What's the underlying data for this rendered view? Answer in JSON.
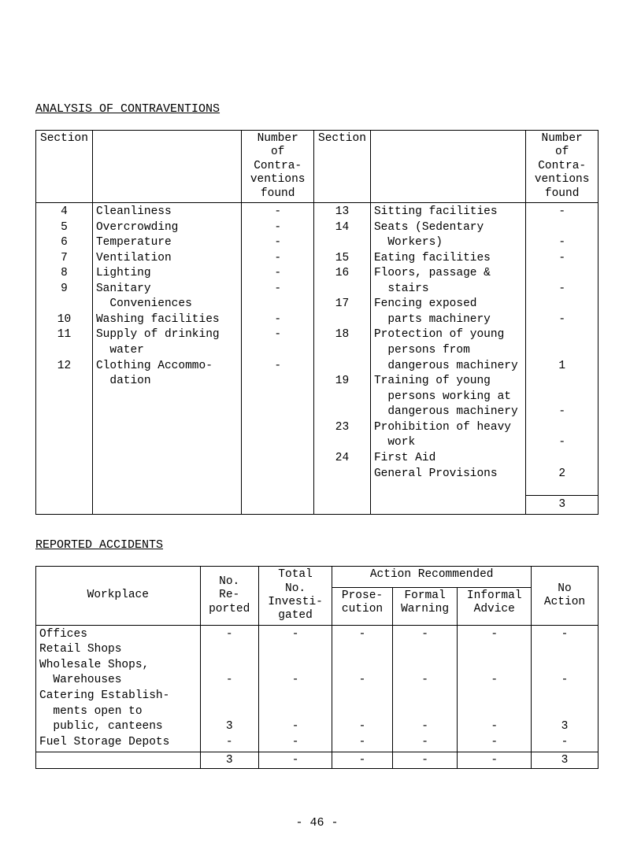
{
  "heading1": "ANALYSIS OF CONTRAVENTIONS",
  "heading2": "REPORTED ACCIDENTS",
  "footer": "- 46 -",
  "table1": {
    "hdr": {
      "section_l": "Section",
      "blank": "",
      "contra": "Number\nof\nContra-\nventions\nfound",
      "section_r": "Section",
      "blank2": "",
      "contra2": "Number\nof\nContra-\nventions\nfound"
    },
    "left_nums": [
      "4",
      "5",
      "6",
      "7",
      "8",
      "9",
      "",
      "10",
      "11",
      "",
      "12",
      ""
    ],
    "left_desc": [
      "Cleanliness",
      "Overcrowding",
      "Temperature",
      "Ventilation",
      "Lighting",
      "Sanitary",
      "  Conveniences",
      "Washing facilities",
      "Supply of drinking",
      "  water",
      "Clothing Accommo-",
      "  dation"
    ],
    "left_contra": [
      "-",
      "-",
      "-",
      "-",
      "-",
      "-",
      "",
      "-",
      "-",
      "",
      "-",
      ""
    ],
    "right_nums": [
      "13",
      "14",
      "",
      "15",
      "16",
      "",
      "17",
      "",
      "18",
      "",
      "",
      "19",
      "",
      "",
      "23",
      "",
      "24",
      ""
    ],
    "right_desc": [
      "Sitting facilities",
      "Seats (Sedentary",
      "  Workers)",
      "Eating facilities",
      "Floors, passage &",
      "  stairs",
      "Fencing exposed",
      "  parts machinery",
      "Protection of young",
      "  persons from",
      "  dangerous machinery",
      "Training of young",
      "  persons working at",
      "  dangerous machinery",
      "Prohibition of heavy",
      "  work",
      "First Aid",
      "General Provisions"
    ],
    "right_contra": [
      "-",
      "",
      "-",
      "-",
      "",
      "-",
      "",
      "-",
      "",
      "",
      "1",
      "",
      "",
      "-",
      "",
      "-",
      "",
      "2"
    ],
    "total_right": "3"
  },
  "table2": {
    "hdr": {
      "workplace": "Workplace",
      "no_reported": "No.\nRe-\nported",
      "total_inv": "Total\nNo.\nInvesti-\ngated",
      "action": "Action Recommended",
      "prose": "Prose-\ncution",
      "formal": "Formal\nWarning",
      "informal": "Informal\nAdvice",
      "noaction": "No\nAction"
    },
    "rows": [
      {
        "w": "Offices",
        "a": "-",
        "b": "-",
        "c": "-",
        "d": "-",
        "e": "-",
        "f": "-"
      },
      {
        "w": "Retail Shops",
        "a": "",
        "b": "",
        "c": "",
        "d": "",
        "e": "",
        "f": ""
      },
      {
        "w": "Wholesale Shops,",
        "a": "",
        "b": "",
        "c": "",
        "d": "",
        "e": "",
        "f": ""
      },
      {
        "w": "  Warehouses",
        "a": "-",
        "b": "-",
        "c": "-",
        "d": "-",
        "e": "-",
        "f": "-"
      },
      {
        "w": "Catering Establish-",
        "a": "",
        "b": "",
        "c": "",
        "d": "",
        "e": "",
        "f": ""
      },
      {
        "w": "  ments open to",
        "a": "",
        "b": "",
        "c": "",
        "d": "",
        "e": "",
        "f": ""
      },
      {
        "w": "  public, canteens",
        "a": "3",
        "b": "-",
        "c": "-",
        "d": "-",
        "e": "-",
        "f": "3"
      },
      {
        "w": "Fuel Storage Depots",
        "a": "-",
        "b": "-",
        "c": "-",
        "d": "-",
        "e": "-",
        "f": "-"
      }
    ],
    "total": {
      "a": "3",
      "b": "-",
      "c": "-",
      "d": "-",
      "e": "-",
      "f": "3"
    }
  }
}
